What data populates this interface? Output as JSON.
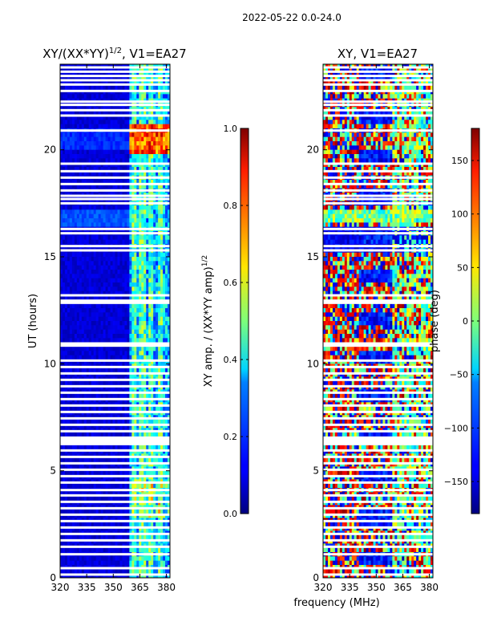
{
  "figure": {
    "suptitle": "2022-05-22 0.0-24.0",
    "xlabel": "frequency (MHz)"
  },
  "chart_data": [
    {
      "type": "heatmap",
      "title_main": "XY/(XX*YY)",
      "title_sup": "1/2",
      "title_suffix": ", V1=EA27",
      "xlabel": "",
      "ylabel": "UT (hours)",
      "xlim": [
        320,
        382
      ],
      "ylim": [
        0,
        24
      ],
      "xticks": [
        320,
        335,
        350,
        365,
        380
      ],
      "yticks": [
        0,
        5,
        10,
        15,
        20
      ],
      "colorbar": {
        "label_main": "XY amp. / (XX*YY amp)",
        "label_sup": "1/2",
        "range": [
          0.0,
          1.0
        ],
        "ticks": [
          "0.0",
          "0.2",
          "0.4",
          "0.6",
          "0.8",
          "1.0"
        ],
        "tick_values": [
          0.0,
          0.2,
          0.4,
          0.6,
          0.8,
          1.0
        ]
      }
    },
    {
      "type": "heatmap",
      "title_main": "XY, V1=EA27",
      "xlabel": "frequency (MHz)",
      "ylabel": "",
      "xlim": [
        320,
        382
      ],
      "ylim": [
        0,
        24
      ],
      "xticks": [
        320,
        335,
        350,
        365,
        380
      ],
      "yticks": [
        0,
        5,
        10,
        15,
        20
      ],
      "colorbar": {
        "label_main": "phase (deg)",
        "range": [
          -180,
          180
        ],
        "ticks": [
          "−150",
          "−100",
          "−50",
          "0",
          "50",
          "100",
          "150"
        ],
        "tick_values": [
          -150,
          -100,
          -50,
          0,
          50,
          100,
          150
        ]
      }
    }
  ],
  "flagged_rows_ut": [
    0.15,
    0.45,
    1.1,
    1.45,
    1.75,
    2.05,
    2.35,
    2.65,
    2.95,
    3.25,
    3.55,
    3.85,
    4.1,
    4.45,
    4.75,
    5.05,
    5.35,
    5.65,
    5.95,
    6.25,
    6.35,
    6.45,
    6.55,
    6.85,
    7.15,
    7.45,
    7.75,
    8.05,
    8.35,
    8.65,
    8.95,
    9.25,
    9.55,
    9.85,
    10.15,
    10.85,
    10.95,
    12.85,
    12.95,
    13.2,
    15.3,
    15.5,
    16.1,
    16.3,
    17.5,
    17.7,
    17.85,
    18.1,
    18.4,
    18.7,
    19.0,
    19.35,
    20.9,
    21.6,
    21.85,
    22.1,
    22.25,
    22.75,
    23.05,
    23.25,
    23.45,
    23.65,
    23.85
  ],
  "colors": {
    "jet_low": "#00007f",
    "jet_high": "#7f0000",
    "flag": "#ffffff"
  }
}
